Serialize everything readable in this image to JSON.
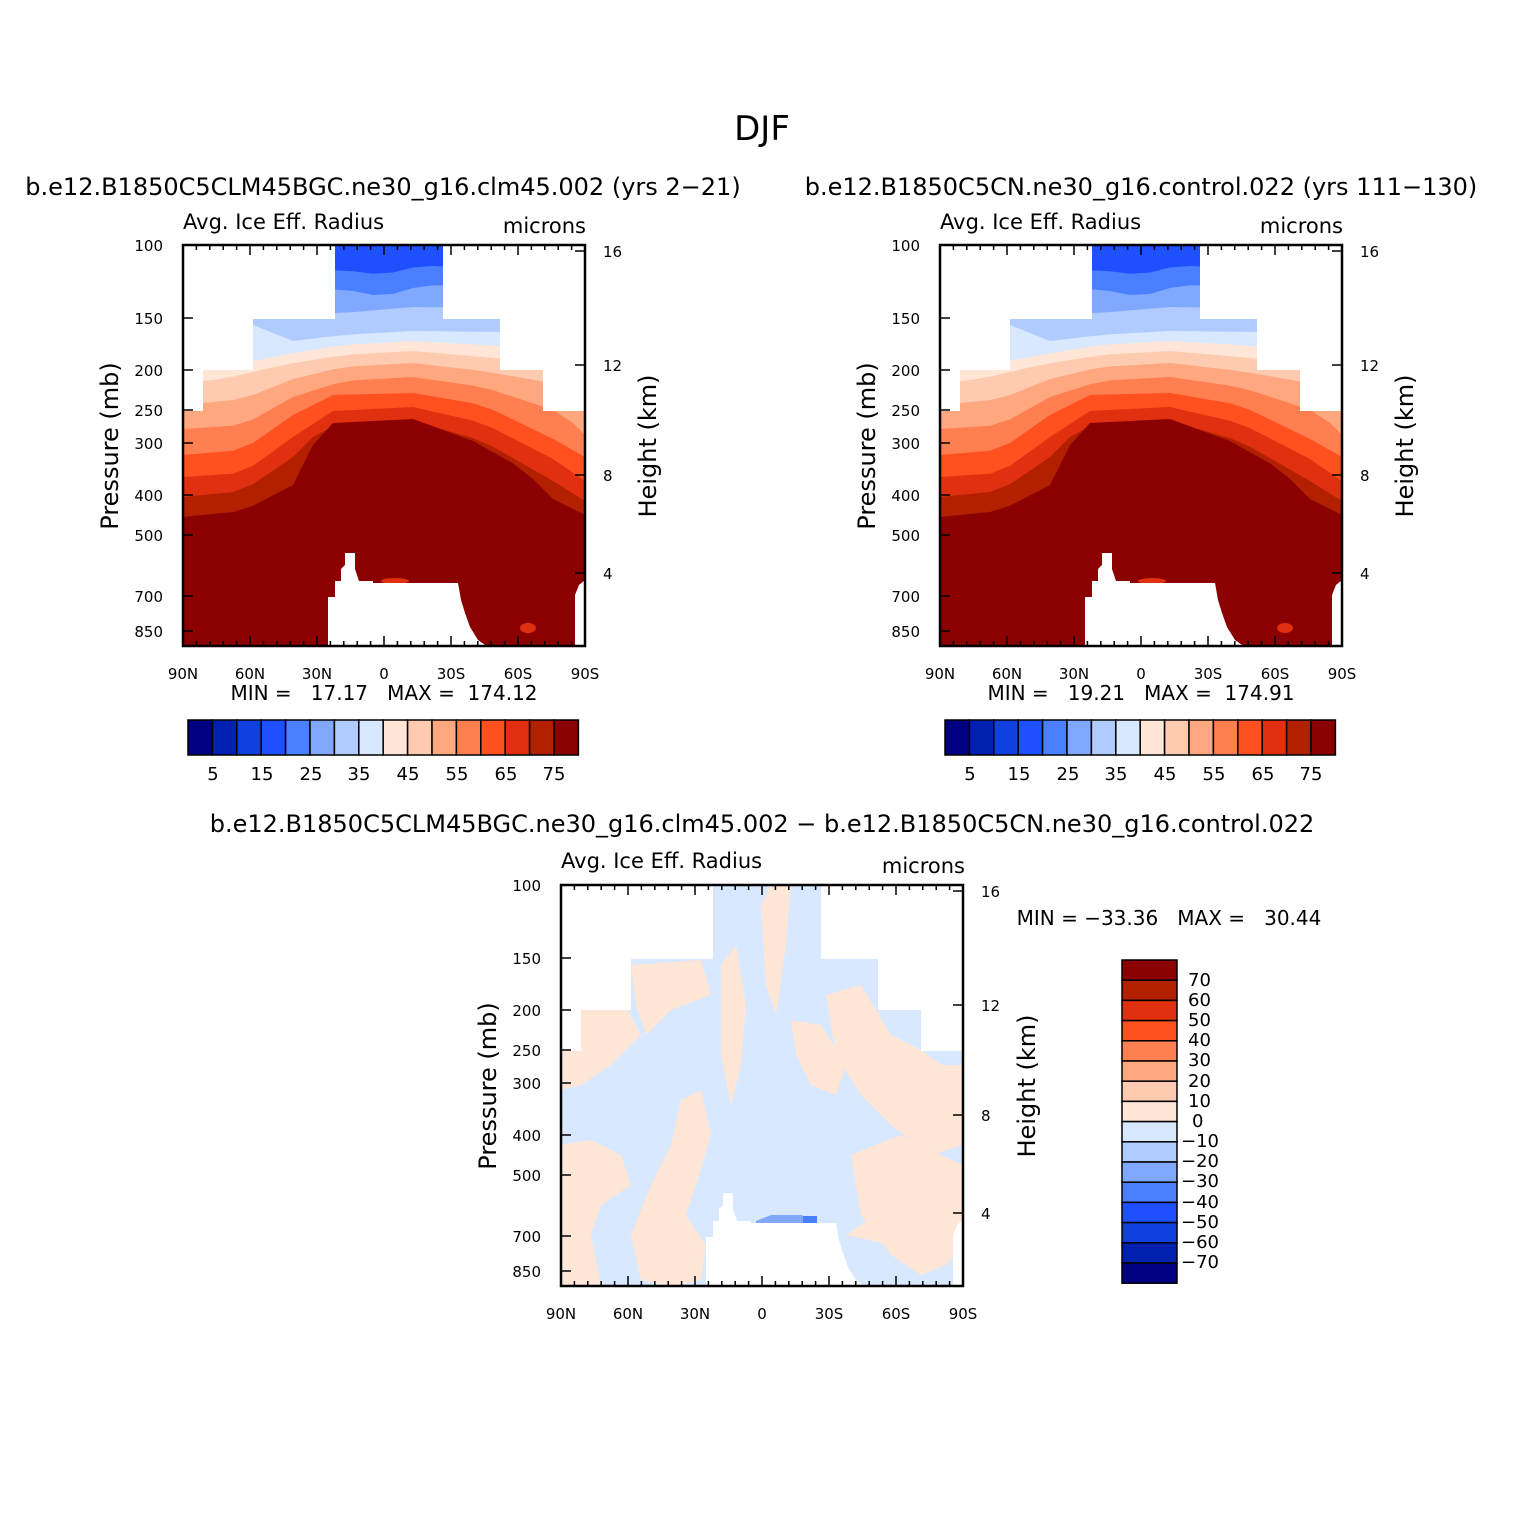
{
  "figure": {
    "title": "DJF",
    "diff_title": "b.e12.B1850C5CLM45BGC.ne30_g16.clm45.002 − b.e12.B1850C5CN.ne30_g16.control.022"
  },
  "palette": {
    "blue": [
      "#000080",
      "#0020b0",
      "#1040e0",
      "#1e50ff",
      "#4a80ff",
      "#80a8ff",
      "#b0cbff",
      "#d8e8ff"
    ],
    "red": [
      "#ffe6d6",
      "#ffcbb0",
      "#ffa880",
      "#ff7f50",
      "#ff5020",
      "#e03010",
      "#b22000",
      "#8b0000"
    ]
  },
  "chart_data": [
    {
      "type": "heatmap",
      "case_title": "b.e12.B1850C5CLM45BGC.ne30_g16.clm45.002 (yrs 2−21)",
      "left_title": "Avg. Ice Eff. Radius",
      "right_title": "microns",
      "ylabel": "Pressure (mb)",
      "ylabel_right": "Height (km)",
      "x_ticks": [
        "90N",
        "60N",
        "30N",
        "0",
        "30S",
        "60S",
        "90S"
      ],
      "y_ticks": [
        "100",
        "150",
        "200",
        "250",
        "300",
        "400",
        "500",
        "700",
        "850"
      ],
      "y_ticks_right": [
        "16",
        "12",
        "8",
        "4"
      ],
      "min_max_text": "MIN =   17.17   MAX =  174.12",
      "min": 17.17,
      "max": 174.12,
      "colorbar": {
        "orientation": "horizontal",
        "labels": [
          "5",
          "15",
          "25",
          "35",
          "45",
          "55",
          "65",
          "75"
        ]
      }
    },
    {
      "type": "heatmap",
      "case_title": "b.e12.B1850C5CN.ne30_g16.control.022 (yrs 111−130)",
      "left_title": "Avg. Ice Eff. Radius",
      "right_title": "microns",
      "ylabel": "Pressure (mb)",
      "ylabel_right": "Height (km)",
      "x_ticks": [
        "90N",
        "60N",
        "30N",
        "0",
        "30S",
        "60S",
        "90S"
      ],
      "y_ticks": [
        "100",
        "150",
        "200",
        "250",
        "300",
        "400",
        "500",
        "700",
        "850"
      ],
      "y_ticks_right": [
        "16",
        "12",
        "8",
        "4"
      ],
      "min_max_text": "MIN =   19.21   MAX =  174.91",
      "min": 19.21,
      "max": 174.91,
      "colorbar": {
        "orientation": "horizontal",
        "labels": [
          "5",
          "15",
          "25",
          "35",
          "45",
          "55",
          "65",
          "75"
        ]
      }
    },
    {
      "type": "heatmap",
      "left_title": "Avg. Ice Eff. Radius",
      "right_title": "microns",
      "ylabel": "Pressure (mb)",
      "ylabel_right": "Height (km)",
      "x_ticks": [
        "90N",
        "60N",
        "30N",
        "0",
        "30S",
        "60S",
        "90S"
      ],
      "y_ticks": [
        "100",
        "150",
        "200",
        "250",
        "300",
        "400",
        "500",
        "700",
        "850"
      ],
      "y_ticks_right": [
        "16",
        "12",
        "8",
        "4"
      ],
      "min_max_text": "MIN = −33.36   MAX =   30.44",
      "min": -33.36,
      "max": 30.44,
      "colorbar": {
        "orientation": "vertical",
        "labels": [
          "70",
          "60",
          "50",
          "40",
          "30",
          "20",
          "10",
          "0",
          "−10",
          "−20",
          "−30",
          "−40",
          "−50",
          "−60",
          "−70"
        ]
      }
    }
  ]
}
